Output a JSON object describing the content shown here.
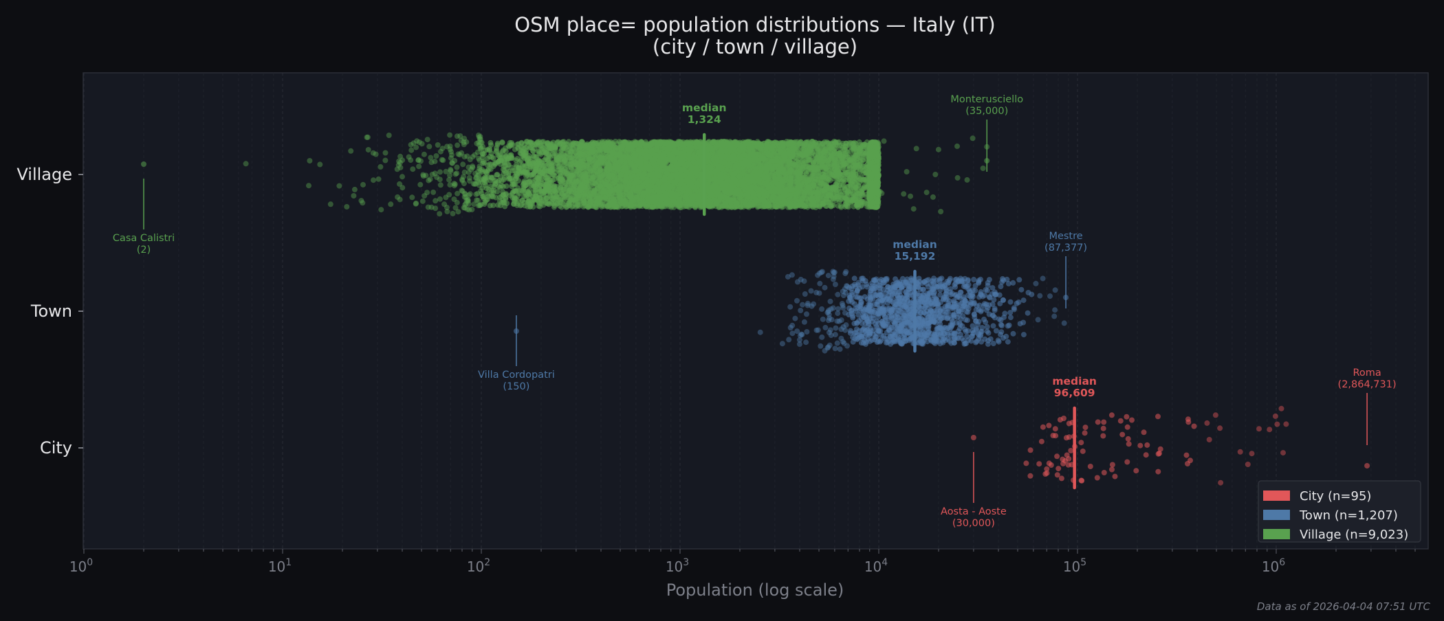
{
  "chart_data": {
    "type": "scatter",
    "title": "OSM place= population distributions — Italy (IT)",
    "subtitle": "(city / town / village)",
    "xlabel": "Population (log scale)",
    "xscale": "log",
    "xlim": [
      1,
      5800000
    ],
    "xticks": [
      {
        "value": 1,
        "base": "10",
        "exp": "0"
      },
      {
        "value": 10,
        "base": "10",
        "exp": "1"
      },
      {
        "value": 100,
        "base": "10",
        "exp": "2"
      },
      {
        "value": 1000,
        "base": "10",
        "exp": "3"
      },
      {
        "value": 10000,
        "base": "10",
        "exp": "4"
      },
      {
        "value": 100000,
        "base": "10",
        "exp": "5"
      },
      {
        "value": 1000000,
        "base": "10",
        "exp": "6"
      }
    ],
    "categories": [
      "Village",
      "Town",
      "City"
    ],
    "grid": true,
    "legend_placement": "bottom-right",
    "series": [
      {
        "name": "Village",
        "legend": "Village  (n=9,023)",
        "n": 9023,
        "color": "#59a14f",
        "median": 1324,
        "median_label": "median",
        "median_value": "1,324",
        "core_range": [
          100,
          10000
        ],
        "range": [
          2,
          35000
        ],
        "annotations": [
          {
            "name": "Casa Calistri",
            "value": 2,
            "value_label": "(2)",
            "position": "below"
          },
          {
            "name": "Monterusciello",
            "value": 35000,
            "value_label": "(35,000)",
            "position": "above"
          }
        ]
      },
      {
        "name": "Town",
        "legend": "Town  (n=1,207)",
        "n": 1207,
        "color": "#4e79a7",
        "median": 15192,
        "median_label": "median",
        "median_value": "15,192",
        "core_range": [
          7000,
          60000
        ],
        "range": [
          150,
          87377
        ],
        "annotations": [
          {
            "name": "Villa Cordopatri",
            "value": 150,
            "value_label": "(150)",
            "position": "below"
          },
          {
            "name": "Mestre",
            "value": 87377,
            "value_label": "(87,377)",
            "position": "above"
          }
        ]
      },
      {
        "name": "City",
        "legend": "City  (n=95)",
        "n": 95,
        "color": "#e15759",
        "median": 96609,
        "median_label": "median",
        "median_value": "96,609",
        "core_range": [
          45000,
          400000
        ],
        "range": [
          30000,
          2864731
        ],
        "annotations": [
          {
            "name": "Roma",
            "value": 2864731,
            "value_label": "(2,864,731)",
            "position": "above"
          },
          {
            "name": "Aosta - Aoste",
            "value": 30000,
            "value_label": "(30,000)",
            "position": "below"
          }
        ]
      }
    ]
  },
  "footer": "Data as of 2026-04-04 07:51 UTC"
}
